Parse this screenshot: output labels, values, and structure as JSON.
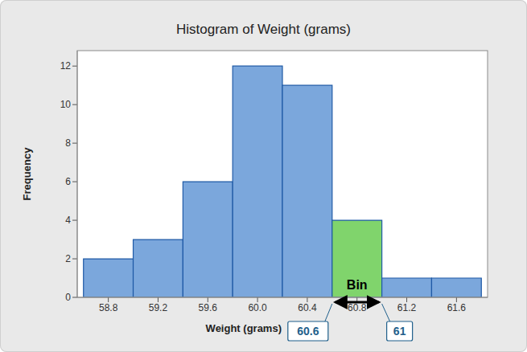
{
  "chart_data": {
    "type": "histogram",
    "title": "Histogram of Weight (grams)",
    "x_label": "Weight (grams)",
    "y_label": "Frequency",
    "bins": [
      58.6,
      59.0,
      59.4,
      59.8,
      60.2,
      60.6,
      61.0,
      61.4,
      61.8
    ],
    "values": [
      2,
      3,
      6,
      12,
      11,
      4,
      1,
      1
    ],
    "colors": [
      "#7ba7dc",
      "#7ba7dc",
      "#7ba7dc",
      "#7ba7dc",
      "#7ba7dc",
      "#80d46c",
      "#7ba7dc",
      "#7ba7dc"
    ],
    "xlim": [
      58.55,
      61.85
    ],
    "xticks": [
      58.8,
      59.2,
      59.6,
      {
        "value": 60,
        "label": "60.0"
      },
      60.4,
      60.8,
      61.2,
      61.6
    ],
    "ylim": [
      0,
      12.8
    ],
    "yticks": [
      0,
      2,
      4,
      6,
      8,
      10,
      12
    ],
    "grid": false,
    "annotations": [
      {
        "text": "Bin",
        "x": [
          60.6,
          61
        ]
      },
      {
        "text": "60.6",
        "x": 60.6
      },
      {
        "text": "61",
        "x": 61
      }
    ]
  }
}
